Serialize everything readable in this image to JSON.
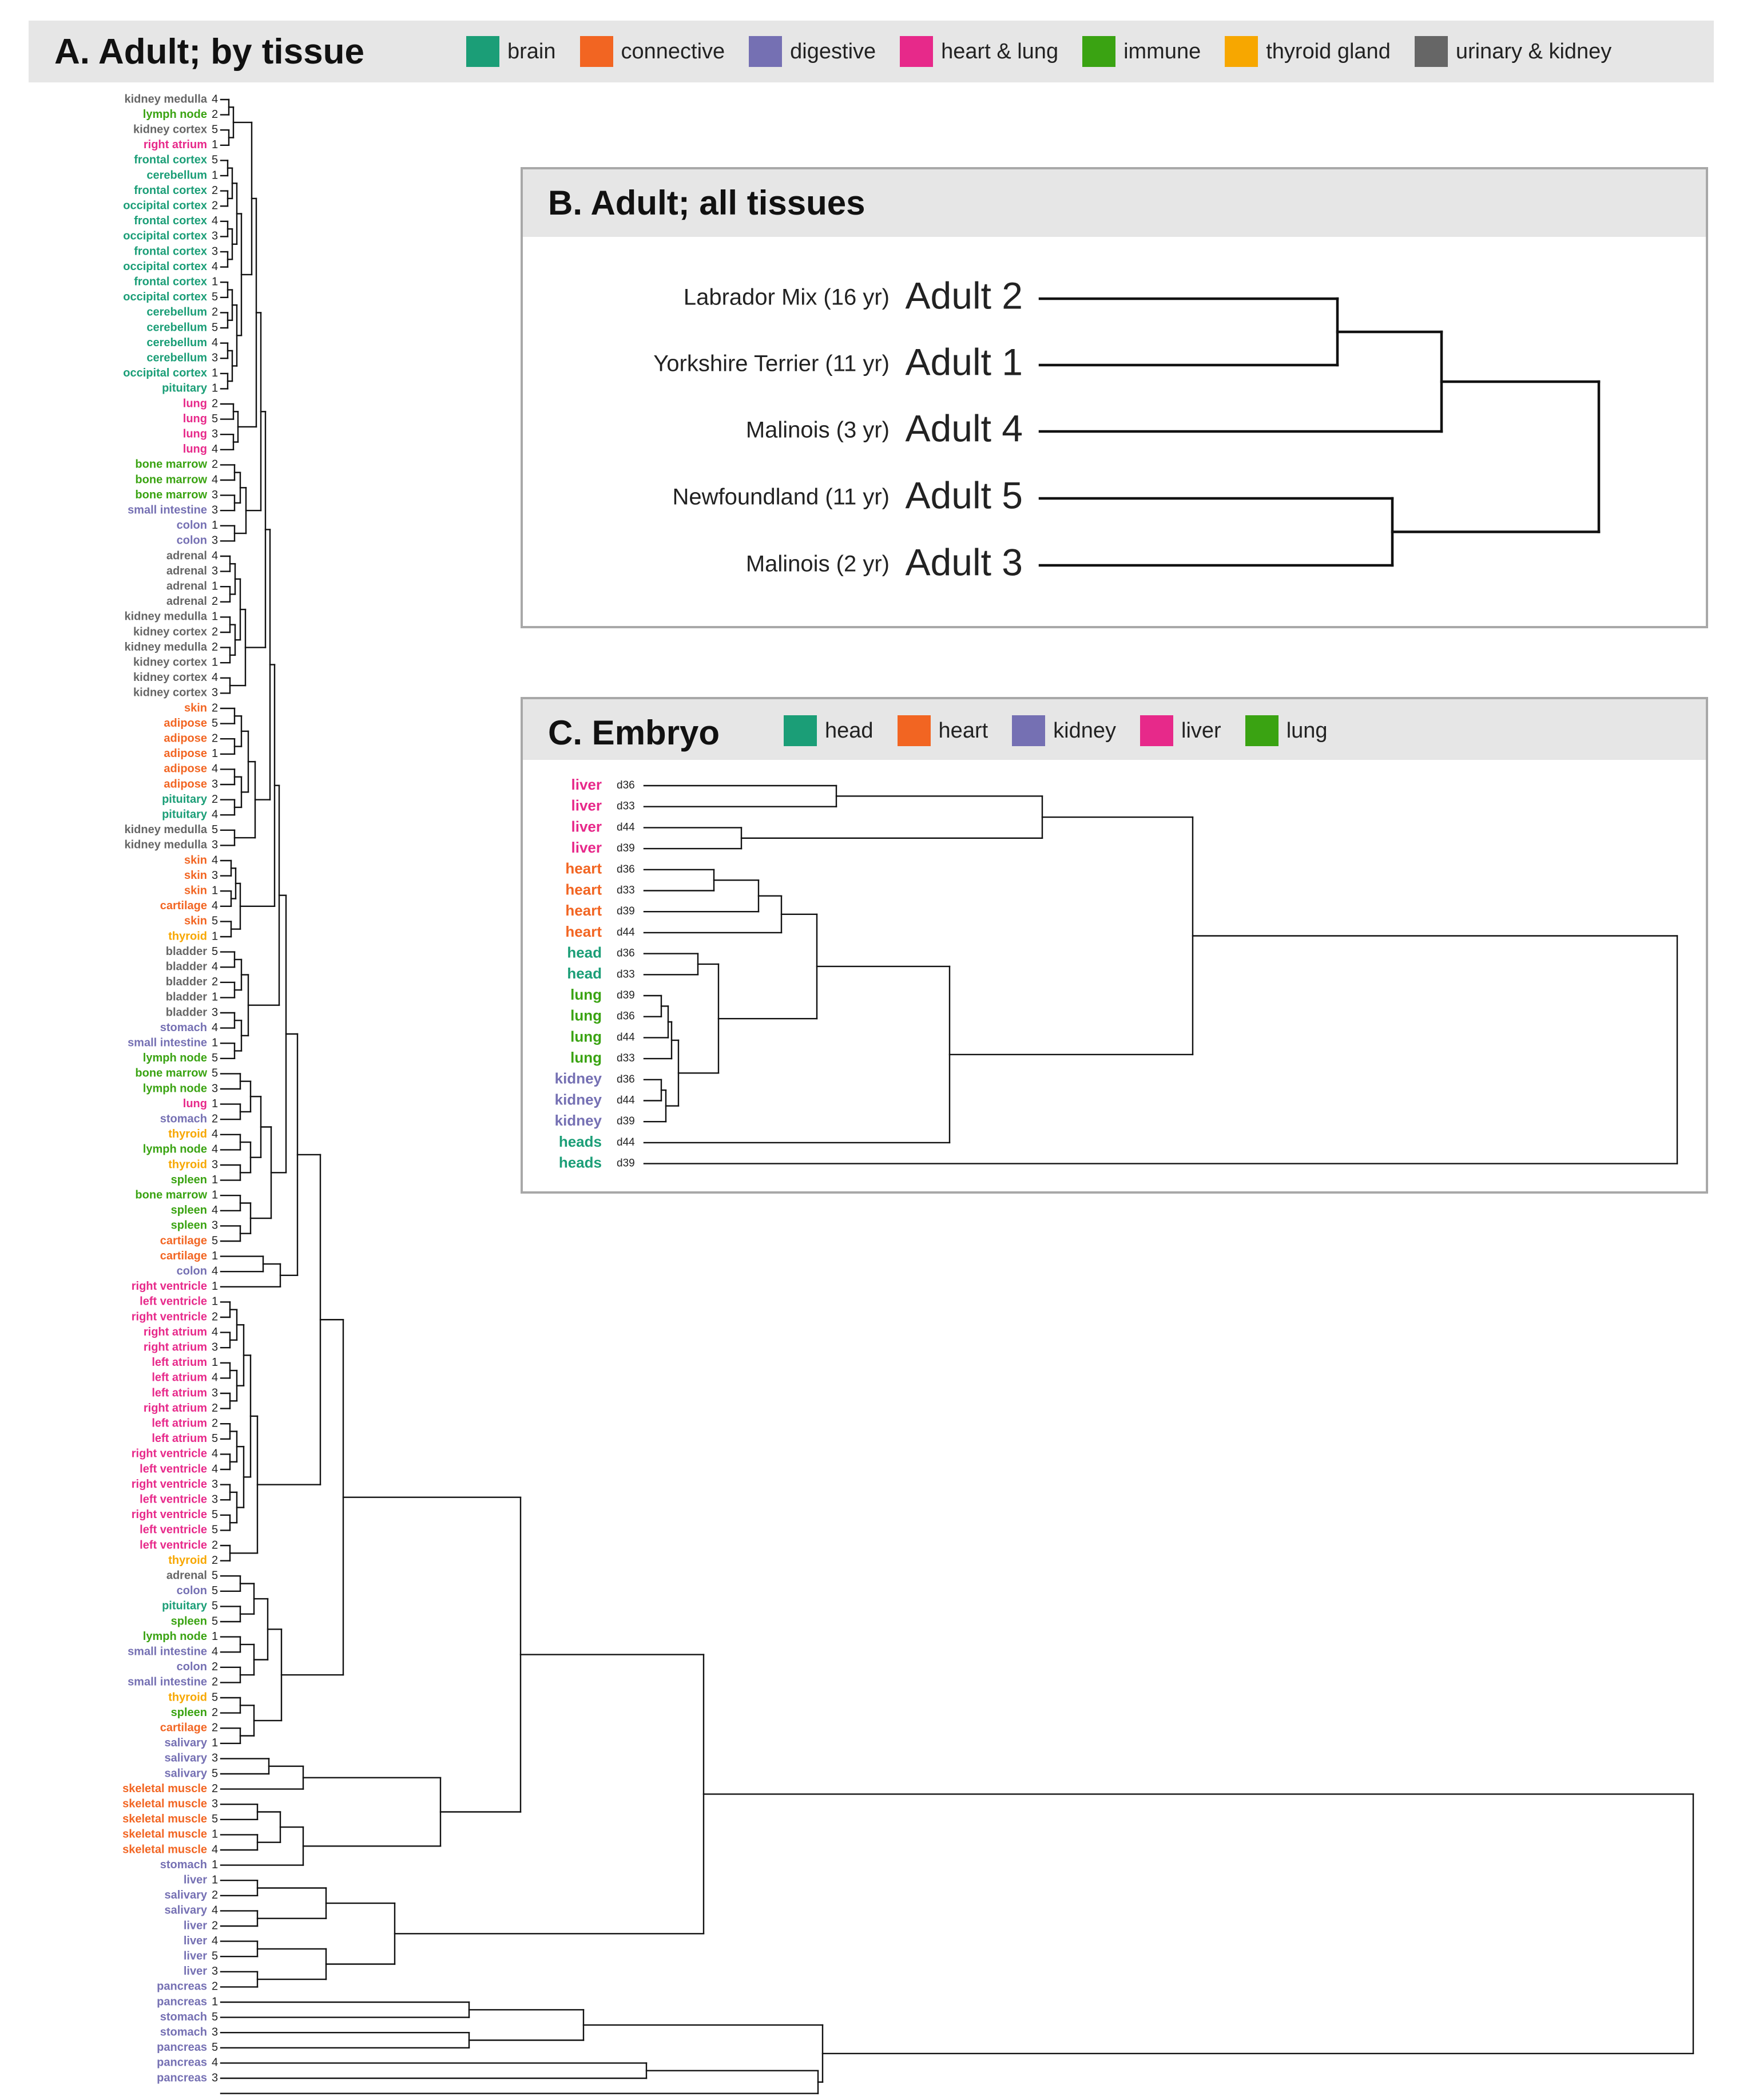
{
  "panel_a": {
    "title": "A. Adult; by tissue",
    "legend": [
      {
        "label": "brain",
        "color": "#1b9e77"
      },
      {
        "label": "connective",
        "color": "#f26522"
      },
      {
        "label": "digestive",
        "color": "#7570b3"
      },
      {
        "label": "heart & lung",
        "color": "#e7298a"
      },
      {
        "label": "immune",
        "color": "#3aa312"
      },
      {
        "label": "thyroid gland",
        "color": "#f7a700"
      },
      {
        "label": "urinary & kidney",
        "color": "#666666"
      }
    ],
    "leaves": [
      {
        "t": "kidney medulla",
        "r": "4",
        "g": 6
      },
      {
        "t": "lymph node",
        "r": "2",
        "g": 4
      },
      {
        "t": "kidney cortex",
        "r": "5",
        "g": 6
      },
      {
        "t": "right atrium",
        "r": "1",
        "g": 3
      },
      {
        "t": "frontal cortex",
        "r": "5",
        "g": 0
      },
      {
        "t": "cerebellum",
        "r": "1",
        "g": 0
      },
      {
        "t": "frontal cortex",
        "r": "2",
        "g": 0
      },
      {
        "t": "occipital cortex",
        "r": "2",
        "g": 0
      },
      {
        "t": "frontal cortex",
        "r": "4",
        "g": 0
      },
      {
        "t": "occipital cortex",
        "r": "3",
        "g": 0
      },
      {
        "t": "frontal cortex",
        "r": "3",
        "g": 0
      },
      {
        "t": "occipital cortex",
        "r": "4",
        "g": 0
      },
      {
        "t": "frontal cortex",
        "r": "1",
        "g": 0
      },
      {
        "t": "occipital cortex",
        "r": "5",
        "g": 0
      },
      {
        "t": "cerebellum",
        "r": "2",
        "g": 0
      },
      {
        "t": "cerebellum",
        "r": "5",
        "g": 0
      },
      {
        "t": "cerebellum",
        "r": "4",
        "g": 0
      },
      {
        "t": "cerebellum",
        "r": "3",
        "g": 0
      },
      {
        "t": "occipital cortex",
        "r": "1",
        "g": 0
      },
      {
        "t": "pituitary",
        "r": "1",
        "g": 0
      },
      {
        "t": "lung",
        "r": "2",
        "g": 3
      },
      {
        "t": "lung",
        "r": "5",
        "g": 3
      },
      {
        "t": "lung",
        "r": "3",
        "g": 3
      },
      {
        "t": "lung",
        "r": "4",
        "g": 3
      },
      {
        "t": "bone marrow",
        "r": "2",
        "g": 4
      },
      {
        "t": "bone marrow",
        "r": "4",
        "g": 4
      },
      {
        "t": "bone marrow",
        "r": "3",
        "g": 4
      },
      {
        "t": "small intestine",
        "r": "3",
        "g": 2
      },
      {
        "t": "colon",
        "r": "1",
        "g": 2
      },
      {
        "t": "colon",
        "r": "3",
        "g": 2
      },
      {
        "t": "adrenal",
        "r": "4",
        "g": 6
      },
      {
        "t": "adrenal",
        "r": "3",
        "g": 6
      },
      {
        "t": "adrenal",
        "r": "1",
        "g": 6
      },
      {
        "t": "adrenal",
        "r": "2",
        "g": 6
      },
      {
        "t": "kidney medulla",
        "r": "1",
        "g": 6
      },
      {
        "t": "kidney cortex",
        "r": "2",
        "g": 6
      },
      {
        "t": "kidney medulla",
        "r": "2",
        "g": 6
      },
      {
        "t": "kidney cortex",
        "r": "1",
        "g": 6
      },
      {
        "t": "kidney cortex",
        "r": "4",
        "g": 6
      },
      {
        "t": "kidney cortex",
        "r": "3",
        "g": 6
      },
      {
        "t": "skin",
        "r": "2",
        "g": 1
      },
      {
        "t": "adipose",
        "r": "5",
        "g": 1
      },
      {
        "t": "adipose",
        "r": "2",
        "g": 1
      },
      {
        "t": "adipose",
        "r": "1",
        "g": 1
      },
      {
        "t": "adipose",
        "r": "4",
        "g": 1
      },
      {
        "t": "adipose",
        "r": "3",
        "g": 1
      },
      {
        "t": "pituitary",
        "r": "2",
        "g": 0
      },
      {
        "t": "pituitary",
        "r": "4",
        "g": 0
      },
      {
        "t": "kidney medulla",
        "r": "5",
        "g": 6
      },
      {
        "t": "kidney medulla",
        "r": "3",
        "g": 6
      },
      {
        "t": "skin",
        "r": "4",
        "g": 1
      },
      {
        "t": "skin",
        "r": "3",
        "g": 1
      },
      {
        "t": "skin",
        "r": "1",
        "g": 1
      },
      {
        "t": "cartilage",
        "r": "4",
        "g": 1
      },
      {
        "t": "skin",
        "r": "5",
        "g": 1
      },
      {
        "t": "thyroid",
        "r": "1",
        "g": 5
      },
      {
        "t": "bladder",
        "r": "5",
        "g": 6
      },
      {
        "t": "bladder",
        "r": "4",
        "g": 6
      },
      {
        "t": "bladder",
        "r": "2",
        "g": 6
      },
      {
        "t": "bladder",
        "r": "1",
        "g": 6
      },
      {
        "t": "bladder",
        "r": "3",
        "g": 6
      },
      {
        "t": "stomach",
        "r": "4",
        "g": 2
      },
      {
        "t": "small intestine",
        "r": "1",
        "g": 2
      },
      {
        "t": "lymph node",
        "r": "5",
        "g": 4
      },
      {
        "t": "bone marrow",
        "r": "5",
        "g": 4
      },
      {
        "t": "lymph node",
        "r": "3",
        "g": 4
      },
      {
        "t": "lung",
        "r": "1",
        "g": 3
      },
      {
        "t": "stomach",
        "r": "2",
        "g": 2
      },
      {
        "t": "thyroid",
        "r": "4",
        "g": 5
      },
      {
        "t": "lymph node",
        "r": "4",
        "g": 4
      },
      {
        "t": "thyroid",
        "r": "3",
        "g": 5
      },
      {
        "t": "spleen",
        "r": "1",
        "g": 4
      },
      {
        "t": "bone marrow",
        "r": "1",
        "g": 4
      },
      {
        "t": "spleen",
        "r": "4",
        "g": 4
      },
      {
        "t": "spleen",
        "r": "3",
        "g": 4
      },
      {
        "t": "cartilage",
        "r": "5",
        "g": 1
      },
      {
        "t": "cartilage",
        "r": "1",
        "g": 1
      },
      {
        "t": "colon",
        "r": "4",
        "g": 2
      },
      {
        "t": "right ventricle",
        "r": "1",
        "g": 3
      },
      {
        "t": "left ventricle",
        "r": "1",
        "g": 3
      },
      {
        "t": "right ventricle",
        "r": "2",
        "g": 3
      },
      {
        "t": "right atrium",
        "r": "4",
        "g": 3
      },
      {
        "t": "right atrium",
        "r": "3",
        "g": 3
      },
      {
        "t": "left atrium",
        "r": "1",
        "g": 3
      },
      {
        "t": "left atrium",
        "r": "4",
        "g": 3
      },
      {
        "t": "left atrium",
        "r": "3",
        "g": 3
      },
      {
        "t": "right atrium",
        "r": "2",
        "g": 3
      },
      {
        "t": "left atrium",
        "r": "2",
        "g": 3
      },
      {
        "t": "left atrium",
        "r": "5",
        "g": 3
      },
      {
        "t": "right ventricle",
        "r": "4",
        "g": 3
      },
      {
        "t": "left ventricle",
        "r": "4",
        "g": 3
      },
      {
        "t": "right ventricle",
        "r": "3",
        "g": 3
      },
      {
        "t": "left ventricle",
        "r": "3",
        "g": 3
      },
      {
        "t": "right ventricle",
        "r": "5",
        "g": 3
      },
      {
        "t": "left ventricle",
        "r": "5",
        "g": 3
      },
      {
        "t": "left ventricle",
        "r": "2",
        "g": 3
      },
      {
        "t": "thyroid",
        "r": "2",
        "g": 5
      },
      {
        "t": "adrenal",
        "r": "5",
        "g": 6
      },
      {
        "t": "colon",
        "r": "5",
        "g": 2
      },
      {
        "t": "pituitary",
        "r": "5",
        "g": 0
      },
      {
        "t": "spleen",
        "r": "5",
        "g": 4
      },
      {
        "t": "lymph node",
        "r": "1",
        "g": 4
      },
      {
        "t": "small intestine",
        "r": "4",
        "g": 2
      },
      {
        "t": "colon",
        "r": "2",
        "g": 2
      },
      {
        "t": "small intestine",
        "r": "2",
        "g": 2
      },
      {
        "t": "thyroid",
        "r": "5",
        "g": 5
      },
      {
        "t": "spleen",
        "r": "2",
        "g": 4
      },
      {
        "t": "cartilage",
        "r": "2",
        "g": 1
      },
      {
        "t": "salivary",
        "r": "1",
        "g": 2
      },
      {
        "t": "salivary",
        "r": "3",
        "g": 2
      },
      {
        "t": "salivary",
        "r": "5",
        "g": 2
      },
      {
        "t": "skeletal muscle",
        "r": "2",
        "g": 1
      },
      {
        "t": "skeletal muscle",
        "r": "3",
        "g": 1
      },
      {
        "t": "skeletal muscle",
        "r": "5",
        "g": 1
      },
      {
        "t": "skeletal muscle",
        "r": "1",
        "g": 1
      },
      {
        "t": "skeletal muscle",
        "r": "4",
        "g": 1
      },
      {
        "t": "stomach",
        "r": "1",
        "g": 2
      },
      {
        "t": "liver",
        "r": "1",
        "g": 2
      },
      {
        "t": "salivary",
        "r": "2",
        "g": 2
      },
      {
        "t": "salivary",
        "r": "4",
        "g": 2
      },
      {
        "t": "liver",
        "r": "2",
        "g": 2
      },
      {
        "t": "liver",
        "r": "4",
        "g": 2
      },
      {
        "t": "liver",
        "r": "5",
        "g": 2
      },
      {
        "t": "liver",
        "r": "3",
        "g": 2
      },
      {
        "t": "pancreas",
        "r": "2",
        "g": 2
      },
      {
        "t": "pancreas",
        "r": "1",
        "g": 2
      },
      {
        "t": "stomach",
        "r": "5",
        "g": 2
      },
      {
        "t": "stomach",
        "r": "3",
        "g": 2
      },
      {
        "t": "pancreas",
        "r": "5",
        "g": 2
      },
      {
        "t": "pancreas",
        "r": "4",
        "g": 2
      },
      {
        "t": "pancreas",
        "r": "3",
        "g": 2
      }
    ]
  },
  "panel_b": {
    "title": "B. Adult; all tissues",
    "leaves": [
      {
        "dog": "Labrador Mix (16 yr)",
        "adult": "Adult 2"
      },
      {
        "dog": "Yorkshire Terrier (11 yr)",
        "adult": "Adult 1"
      },
      {
        "dog": "Malinois (3 yr)",
        "adult": "Adult 4"
      },
      {
        "dog": "Newfoundland (11 yr)",
        "adult": "Adult 5"
      },
      {
        "dog": "Malinois (2 yr)",
        "adult": "Adult 3"
      }
    ]
  },
  "panel_c": {
    "title": "C. Embryo",
    "legend": [
      {
        "label": "head",
        "color": "#1b9e77"
      },
      {
        "label": "heart",
        "color": "#f26522"
      },
      {
        "label": "kidney",
        "color": "#7570b3"
      },
      {
        "label": "liver",
        "color": "#e7298a"
      },
      {
        "label": "lung",
        "color": "#3aa312"
      }
    ],
    "leaves": [
      {
        "t": "liver",
        "d": "d36",
        "g": 3
      },
      {
        "t": "liver",
        "d": "d33",
        "g": 3
      },
      {
        "t": "liver",
        "d": "d44",
        "g": 3
      },
      {
        "t": "liver",
        "d": "d39",
        "g": 3
      },
      {
        "t": "heart",
        "d": "d36",
        "g": 1
      },
      {
        "t": "heart",
        "d": "d33",
        "g": 1
      },
      {
        "t": "heart",
        "d": "d39",
        "g": 1
      },
      {
        "t": "heart",
        "d": "d44",
        "g": 1
      },
      {
        "t": "head",
        "d": "d36",
        "g": 0
      },
      {
        "t": "head",
        "d": "d33",
        "g": 0
      },
      {
        "t": "lung",
        "d": "d39",
        "g": 4
      },
      {
        "t": "lung",
        "d": "d36",
        "g": 4
      },
      {
        "t": "lung",
        "d": "d44",
        "g": 4
      },
      {
        "t": "lung",
        "d": "d33",
        "g": 4
      },
      {
        "t": "kidney",
        "d": "d36",
        "g": 2
      },
      {
        "t": "kidney",
        "d": "d44",
        "g": 2
      },
      {
        "t": "kidney",
        "d": "d39",
        "g": 2
      },
      {
        "t": "heads",
        "d": "d44",
        "g": 0
      },
      {
        "t": "heads",
        "d": "d39",
        "g": 0
      }
    ]
  }
}
